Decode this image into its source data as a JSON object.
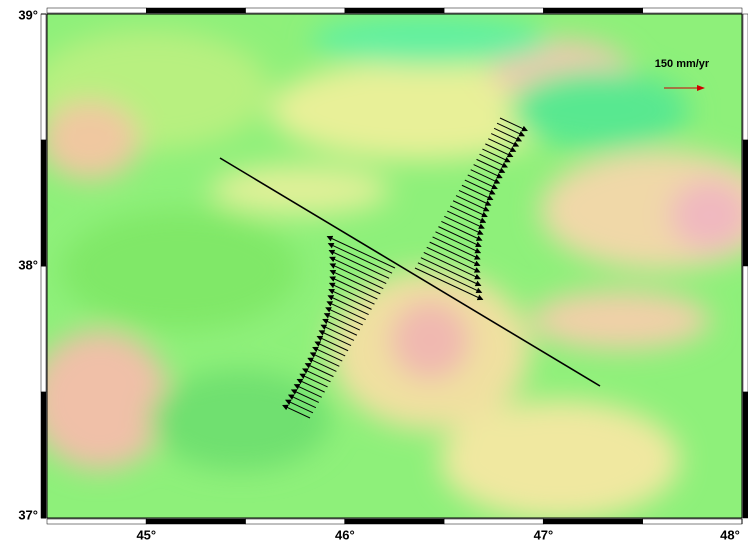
{
  "map": {
    "lon_range": [
      44.5,
      48
    ],
    "lat_range": [
      37,
      39
    ],
    "lon_ticks": [
      {
        "value": 45,
        "label": "45°"
      },
      {
        "value": 46,
        "label": "46°"
      },
      {
        "value": 47,
        "label": "47°"
      },
      {
        "value": 48,
        "label": "48°"
      }
    ],
    "lat_ticks": [
      {
        "value": 37,
        "label": "37°"
      },
      {
        "value": 38,
        "label": "38°"
      },
      {
        "value": 39,
        "label": "39°"
      }
    ],
    "scale_label": "150 mm/yr"
  }
}
